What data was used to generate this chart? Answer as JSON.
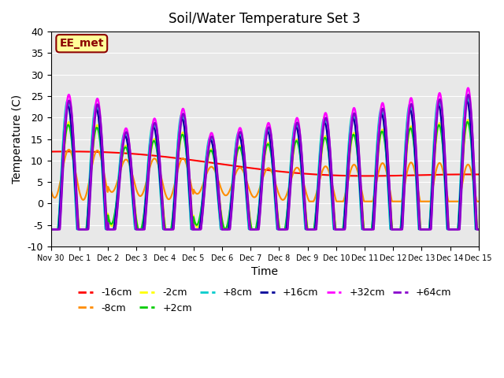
{
  "title": "Soil/Water Temperature Set 3",
  "xlabel": "Time",
  "ylabel": "Temperature (C)",
  "ylim": [
    -10,
    40
  ],
  "xlim": [
    0,
    15
  ],
  "background_color": "#e8e8e8",
  "annotation_text": "EE_met",
  "annotation_color": "#8b0000",
  "annotation_bg": "#ffff99",
  "xtick_positions": [
    0,
    1,
    2,
    3,
    4,
    5,
    6,
    7,
    8,
    9,
    10,
    11,
    12,
    13,
    14,
    15
  ],
  "xtick_labels": [
    "Nov 30",
    "Dec 1",
    "Dec 2",
    "Dec 3",
    "Dec 4",
    "Dec 5",
    "Dec 6",
    "Dec 7",
    "Dec 8",
    "Dec 9",
    "Dec 10",
    "Dec 11",
    "Dec 12",
    "Dec 13",
    "Dec 14",
    "Dec 15"
  ],
  "ytick_values": [
    -10,
    -5,
    0,
    5,
    10,
    15,
    20,
    25,
    30,
    35,
    40
  ],
  "series": {
    "-16cm": {
      "color": "#ff0000",
      "linewidth": 1.5
    },
    "-8cm": {
      "color": "#ff8c00",
      "linewidth": 1.5
    },
    "-2cm": {
      "color": "#ffff00",
      "linewidth": 1.5
    },
    "+2cm": {
      "color": "#00cc00",
      "linewidth": 1.5
    },
    "+8cm": {
      "color": "#00cccc",
      "linewidth": 1.5
    },
    "+16cm": {
      "color": "#000099",
      "linewidth": 1.5
    },
    "+32cm": {
      "color": "#ff00ff",
      "linewidth": 1.8
    },
    "+64cm": {
      "color": "#8800cc",
      "linewidth": 1.8
    }
  }
}
